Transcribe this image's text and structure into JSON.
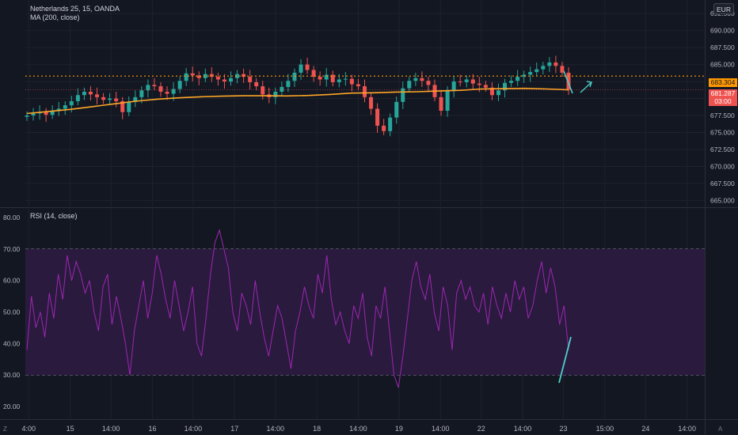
{
  "header": {
    "symbol": "Netherlands 25, 15, OANDA",
    "ma_label": "MA (200, close)",
    "currency": "EUR"
  },
  "rsi_panel": {
    "label": "RSI (14, close)",
    "upper_band": 70,
    "lower_band": 30
  },
  "price_tags": {
    "level_line": "683.304",
    "current_price": "681.287",
    "countdown": "03:00"
  },
  "corner": {
    "left": "Z",
    "right": "A"
  },
  "colors": {
    "background": "#131722",
    "up_candle": "#26a69a",
    "down_candle": "#ef5350",
    "ma_line": "#ffa726",
    "rsi_line": "#9c27b0",
    "rsi_band": "#2a1a3e",
    "drawing": "#4dd0c8",
    "level_line": "#ff9800",
    "current_price": "#ef5350"
  },
  "chart_data": [
    {
      "type": "candlestick",
      "title": "Netherlands 25, 15, OANDA",
      "x_ticks": [
        "4:00",
        "15",
        "14:00",
        "16",
        "14:00",
        "17",
        "14:00",
        "18",
        "14:00",
        "19",
        "14:00",
        "22",
        "14:00",
        "23",
        "15:00",
        "24",
        "14:00"
      ],
      "y_ticks": [
        665.0,
        667.5,
        670.0,
        672.5,
        675.0,
        677.5,
        680.0,
        682.5,
        685.0,
        687.5,
        690.0,
        692.5
      ],
      "ylim": [
        664.0,
        694.5
      ],
      "level_line": 683.304,
      "current_price": 681.287,
      "series": [
        {
          "name": "Netherlands 25, 15, OANDA",
          "values": [
            677.5,
            677.8,
            678.0,
            677.6,
            678.2,
            678.5,
            679.0,
            679.6,
            680.5,
            681.0,
            680.6,
            680.2,
            679.8,
            680.0,
            679.6,
            678.0,
            679.5,
            680.2,
            681.2,
            682.0,
            681.8,
            681.0,
            680.7,
            681.4,
            682.6,
            683.7,
            683.4,
            683.0,
            683.6,
            683.2,
            682.8,
            682.5,
            683.0,
            683.6,
            683.2,
            682.4,
            681.8,
            680.6,
            680.2,
            681.0,
            681.7,
            682.6,
            683.8,
            685.0,
            684.2,
            683.2,
            682.8,
            683.5,
            682.4,
            682.8,
            682.9,
            682.1,
            681.8,
            680.2,
            678.5,
            676.0,
            675.2,
            677.2,
            679.5,
            681.5,
            682.6,
            683.0,
            682.6,
            682.0,
            680.2,
            678.2,
            681.2,
            682.5,
            682.4,
            682.8,
            682.2,
            682.0,
            681.6,
            680.5,
            681.2,
            682.3,
            682.6,
            683.2,
            683.5,
            683.9,
            684.3,
            684.8,
            685.3,
            684.8,
            683.8,
            681.3
          ]
        },
        {
          "name": "MA (200, close)",
          "values": [
            677.8,
            678.1,
            678.4,
            678.8,
            679.2,
            679.6,
            679.9,
            680.1,
            680.25,
            680.35,
            680.4,
            680.4,
            680.38,
            680.45,
            680.6,
            680.8,
            680.85,
            680.95,
            681.0,
            681.1,
            681.2,
            681.4,
            681.45,
            681.5,
            681.4,
            681.28
          ]
        }
      ]
    },
    {
      "type": "line",
      "title": "RSI (14, close)",
      "y_ticks": [
        20.0,
        30.0,
        40.0,
        50.0,
        60.0,
        70.0,
        80.0
      ],
      "ylim": [
        16,
        83
      ],
      "bands": [
        30,
        70
      ],
      "series": [
        {
          "name": "RSI (14, close)",
          "values": [
            38,
            55,
            45,
            50,
            42,
            56,
            48,
            62,
            54,
            68,
            60,
            66,
            62,
            56,
            60,
            50,
            44,
            58,
            62,
            46,
            55,
            48,
            40,
            30,
            44,
            52,
            60,
            48,
            56,
            68,
            62,
            54,
            48,
            60,
            52,
            44,
            50,
            58,
            40,
            36,
            48,
            62,
            72,
            76,
            70,
            64,
            50,
            44,
            56,
            52,
            46,
            60,
            50,
            42,
            36,
            44,
            52,
            48,
            40,
            32,
            44,
            50,
            58,
            52,
            48,
            62,
            56,
            68,
            54,
            46,
            50,
            44,
            40,
            52,
            48,
            56,
            42,
            36,
            52,
            48,
            58,
            44,
            30,
            26,
            36,
            48,
            60,
            66,
            58,
            54,
            62,
            50,
            44,
            58,
            52,
            38,
            56,
            60,
            54,
            58,
            52,
            50,
            56,
            46,
            58,
            52,
            48,
            56,
            50,
            60,
            54,
            58,
            48,
            52,
            60,
            66,
            56,
            64,
            58,
            46,
            52,
            38
          ]
        }
      ]
    }
  ]
}
